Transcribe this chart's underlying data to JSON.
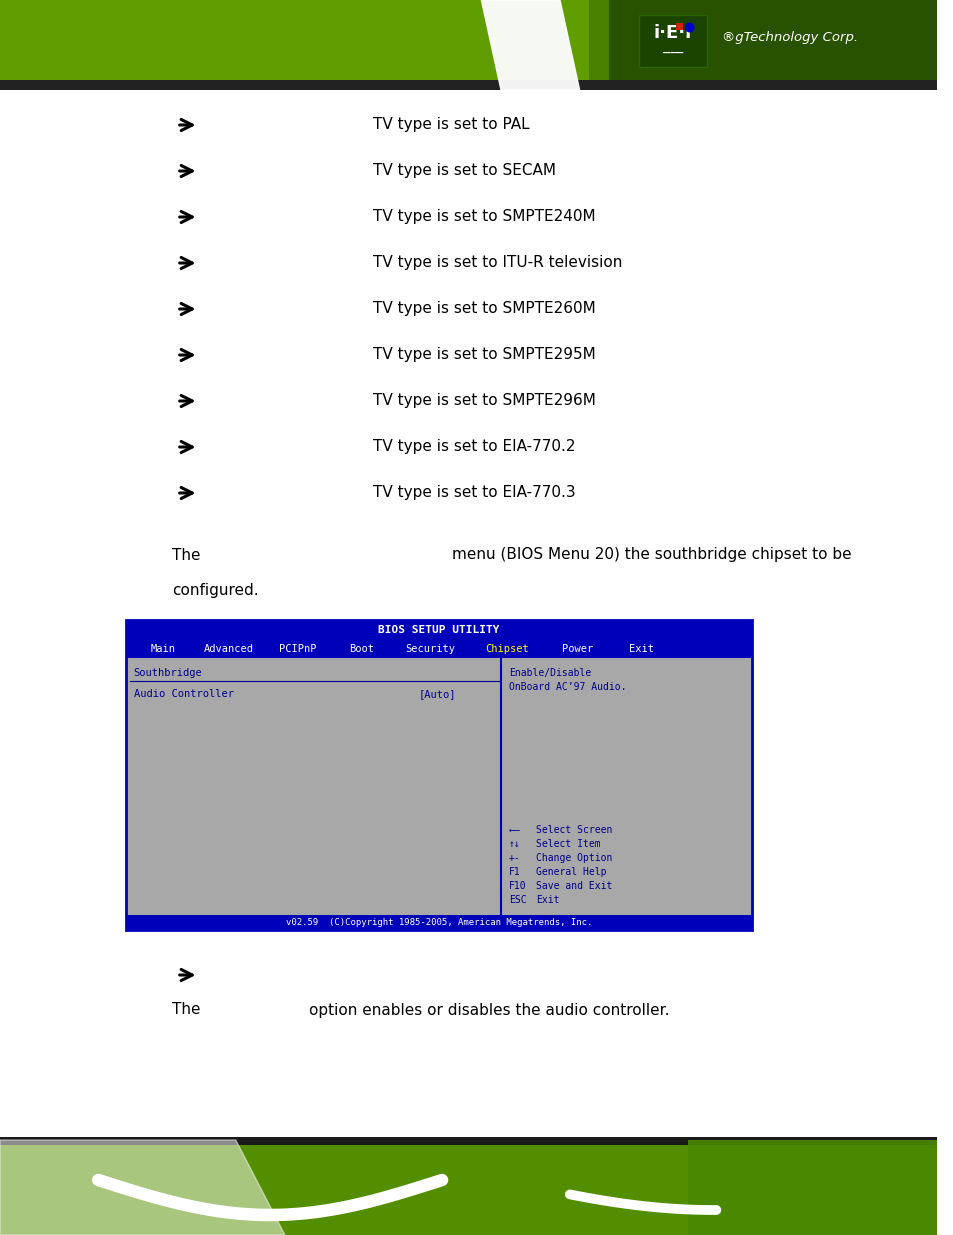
{
  "bg_color": "#ffffff",
  "arrow_items": [
    "TV type is set to PAL",
    "TV type is set to SECAM",
    "TV type is set to SMPTE240M",
    "TV type is set to ITU-R television",
    "TV type is set to SMPTE260M",
    "TV type is set to SMPTE295M",
    "TV type is set to SMPTE296M",
    "TV type is set to EIA-770.2",
    "TV type is set to EIA-770.3"
  ],
  "para_line1_left": "The",
  "para_line1_right": "menu (BIOS Menu 20) the southbridge chipset to be",
  "para_line2": "configured.",
  "bios_title": "BIOS SETUP UTILITY",
  "bios_menu_items": [
    "Main",
    "Advanced",
    "PCIPnP",
    "Boot",
    "Security",
    "Chipset",
    "Power",
    "Exit"
  ],
  "bios_active_menu": "Chipset",
  "bios_left_section_title": "Southbridge",
  "bios_left_item_name": "Audio Controller",
  "bios_left_item_value": "[Auto]",
  "bios_right_help": [
    "Enable/Disable",
    "OnBoard AC’97 Audio."
  ],
  "bios_nav_items": [
    [
      "←—",
      "Select Screen"
    ],
    [
      "↑↓",
      "Select Item"
    ],
    [
      "+-",
      "Change Option"
    ],
    [
      "F1",
      "General Help"
    ],
    [
      "F10",
      "Save and Exit"
    ],
    [
      "ESC",
      "Exit"
    ]
  ],
  "bios_footer": "v02.59  (C)Copyright 1985-2005, American Megatrends, Inc.",
  "bios_bg_color": "#a8a8a8",
  "bios_header_bg": "#0000bb",
  "bios_header_fg": "#ffffff",
  "bios_text_color": "#00008b",
  "bios_border_color": "#0000bb",
  "bottom_arrow_before": "The",
  "bottom_arrow_after": "option enables or disables the audio controller.",
  "header_green": "#5a9e00",
  "footer_green": "#5a9e00"
}
